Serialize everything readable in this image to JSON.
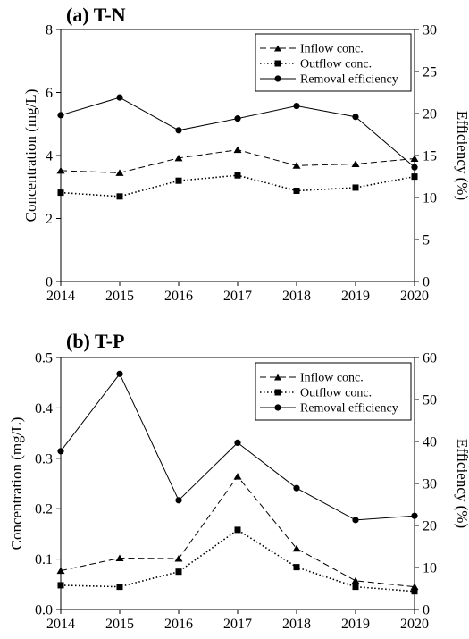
{
  "chart_data": [
    {
      "type": "line",
      "title": "(a) T-N",
      "x": [
        "2014",
        "2015",
        "2016",
        "2017",
        "2018",
        "2019",
        "2020"
      ],
      "ylabel": "Concentration (mg/L)",
      "y2label": "Efficiency (%)",
      "ylim": [
        0,
        8
      ],
      "y2lim": [
        0,
        30
      ],
      "yticks": [
        "0",
        "2",
        "4",
        "6",
        "8"
      ],
      "y2ticks": [
        "0",
        "5",
        "10",
        "15",
        "20",
        "25",
        "30"
      ],
      "legend_position": "top-right",
      "grid": false,
      "series": [
        {
          "name": "Inflow conc.",
          "axis": "left",
          "marker": "triangle",
          "dash": "dashed",
          "values": [
            3.52,
            3.45,
            3.92,
            4.18,
            3.68,
            3.73,
            3.9
          ]
        },
        {
          "name": "Outflow conc.",
          "axis": "left",
          "marker": "square",
          "dash": "dotted",
          "values": [
            2.82,
            2.7,
            3.2,
            3.37,
            2.88,
            2.98,
            3.33
          ]
        },
        {
          "name": "Removal efficiency",
          "axis": "right",
          "marker": "circle",
          "dash": "solid",
          "values": [
            19.8,
            21.9,
            18.0,
            19.4,
            20.9,
            19.6,
            13.6
          ]
        }
      ]
    },
    {
      "type": "line",
      "title": "(b) T-P",
      "x": [
        "2014",
        "2015",
        "2016",
        "2017",
        "2018",
        "2019",
        "2020"
      ],
      "ylabel": "Concentration (mg/L)",
      "y2label": "Efficiency (%)",
      "ylim": [
        0,
        0.5
      ],
      "y2lim": [
        0,
        60
      ],
      "yticks": [
        "0.0",
        "0.1",
        "0.2",
        "0.3",
        "0.4",
        "0.5"
      ],
      "y2ticks": [
        "0",
        "10",
        "20",
        "30",
        "40",
        "50",
        "60"
      ],
      "legend_position": "top-right",
      "grid": false,
      "series": [
        {
          "name": "Inflow conc.",
          "axis": "left",
          "marker": "triangle",
          "dash": "dashed",
          "values": [
            0.077,
            0.102,
            0.101,
            0.264,
            0.121,
            0.057,
            0.045
          ]
        },
        {
          "name": "Outflow conc.",
          "axis": "left",
          "marker": "square",
          "dash": "dotted",
          "values": [
            0.048,
            0.045,
            0.075,
            0.158,
            0.084,
            0.045,
            0.036
          ]
        },
        {
          "name": "Removal efficiency",
          "axis": "right",
          "marker": "circle",
          "dash": "solid",
          "values": [
            37.7,
            56.1,
            26.0,
            39.7,
            28.9,
            21.3,
            22.3
          ]
        }
      ]
    }
  ]
}
